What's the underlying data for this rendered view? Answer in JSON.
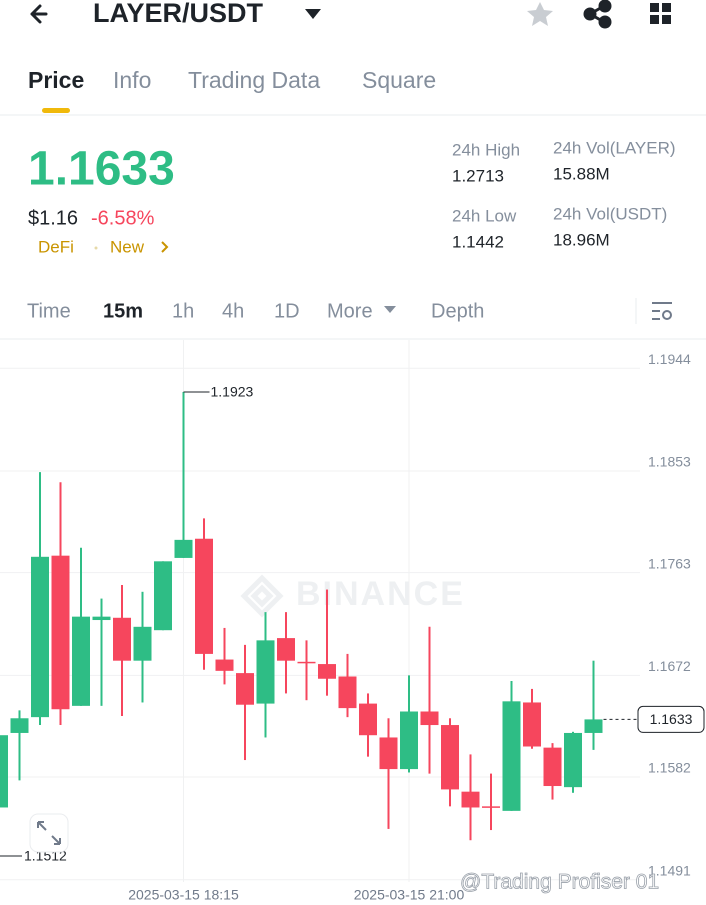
{
  "header": {
    "pair": "LAYER/USDT"
  },
  "tabs": [
    "Price",
    "Info",
    "Trading Data",
    "Square"
  ],
  "price": {
    "last": "1.1633",
    "usd": "$1.16",
    "change": "-6.58%",
    "tags": [
      "DeFi",
      "New"
    ]
  },
  "stats": [
    {
      "label": "24h High",
      "value": "1.2713"
    },
    {
      "label": "24h Low",
      "value": "1.1442"
    },
    {
      "label": "24h Vol(LAYER)",
      "value": "15.88M"
    },
    {
      "label": "24h Vol(USDT)",
      "value": "18.96M"
    }
  ],
  "intervals": [
    "Time",
    "15m",
    "1h",
    "4h",
    "1D",
    "More",
    "Depth"
  ],
  "chart_data": {
    "type": "candlestick",
    "watermark": "BINANCE",
    "x": [
      null,
      null,
      null,
      null,
      null,
      null,
      null,
      null,
      null,
      "2025-03-15 18:15",
      null,
      null,
      null,
      null,
      null,
      null,
      null,
      null,
      null,
      null,
      "2025-03-15 21:00",
      null,
      null,
      null,
      null,
      null,
      null,
      null,
      null,
      null
    ],
    "open": [
      1.1555,
      1.1621,
      1.1635,
      1.1778,
      1.1645,
      1.1721,
      1.1723,
      1.1685,
      1.1712,
      1.1776,
      1.1793,
      1.1686,
      1.1674,
      1.1647,
      1.1705,
      1.1684,
      1.1682,
      1.1671,
      1.1647,
      1.1617,
      1.1589,
      1.164,
      1.1628,
      1.1569,
      1.1556,
      1.1552,
      1.1648,
      1.1608,
      1.1573,
      1.1621
    ],
    "high": [
      1.1624,
      1.1641,
      1.1852,
      1.1843,
      1.1785,
      1.174,
      1.1752,
      1.1746,
      1.1773,
      1.1923,
      1.1811,
      1.1714,
      1.1699,
      1.1728,
      1.1728,
      1.1703,
      1.1748,
      1.1691,
      1.1656,
      1.1634,
      1.1672,
      1.1715,
      1.1634,
      1.1602,
      1.1585,
      1.1667,
      1.166,
      1.1612,
      1.1622,
      1.1685
    ],
    "low": [
      1.1512,
      1.1579,
      1.1628,
      1.1628,
      1.1645,
      1.1645,
      1.1636,
      1.1648,
      1.1712,
      1.1776,
      1.1677,
      1.1664,
      1.1597,
      1.1617,
      1.1656,
      1.165,
      1.1654,
      1.1635,
      1.16,
      1.1536,
      1.1586,
      1.1585,
      1.1556,
      1.1526,
      1.1535,
      1.1552,
      1.1607,
      1.1562,
      1.1568,
      1.1606
    ],
    "close": [
      1.1619,
      1.1634,
      1.1777,
      1.1642,
      1.1724,
      1.1724,
      1.1685,
      1.1715,
      1.1773,
      1.1792,
      1.1691,
      1.1676,
      1.1646,
      1.1703,
      1.1685,
      1.1683,
      1.1669,
      1.1643,
      1.1619,
      1.1589,
      1.164,
      1.1628,
      1.1571,
      1.1555,
      1.1555,
      1.1649,
      1.1609,
      1.1574,
      1.1621,
      1.1633
    ],
    "up_color": "#2ebd85",
    "down_color": "#f6465d",
    "ylim": [
      1.1489,
      1.1969
    ],
    "yticks": [
      1.1944,
      1.1853,
      1.1763,
      1.1672,
      1.1582,
      1.1491
    ],
    "grid": true
  },
  "credit": "@Trading Profiser 01"
}
